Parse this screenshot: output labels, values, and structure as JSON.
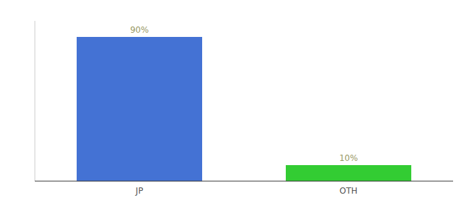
{
  "chart_data": {
    "type": "bar",
    "categories": [
      "JP",
      "OTH"
    ],
    "values": [
      90,
      10
    ],
    "colors": [
      "#4472d4",
      "#33cc33"
    ],
    "value_labels": [
      "90%",
      "10%"
    ],
    "data_labels": true,
    "ylim": [
      0,
      100
    ],
    "tick_labels": "x",
    "grid": false
  }
}
